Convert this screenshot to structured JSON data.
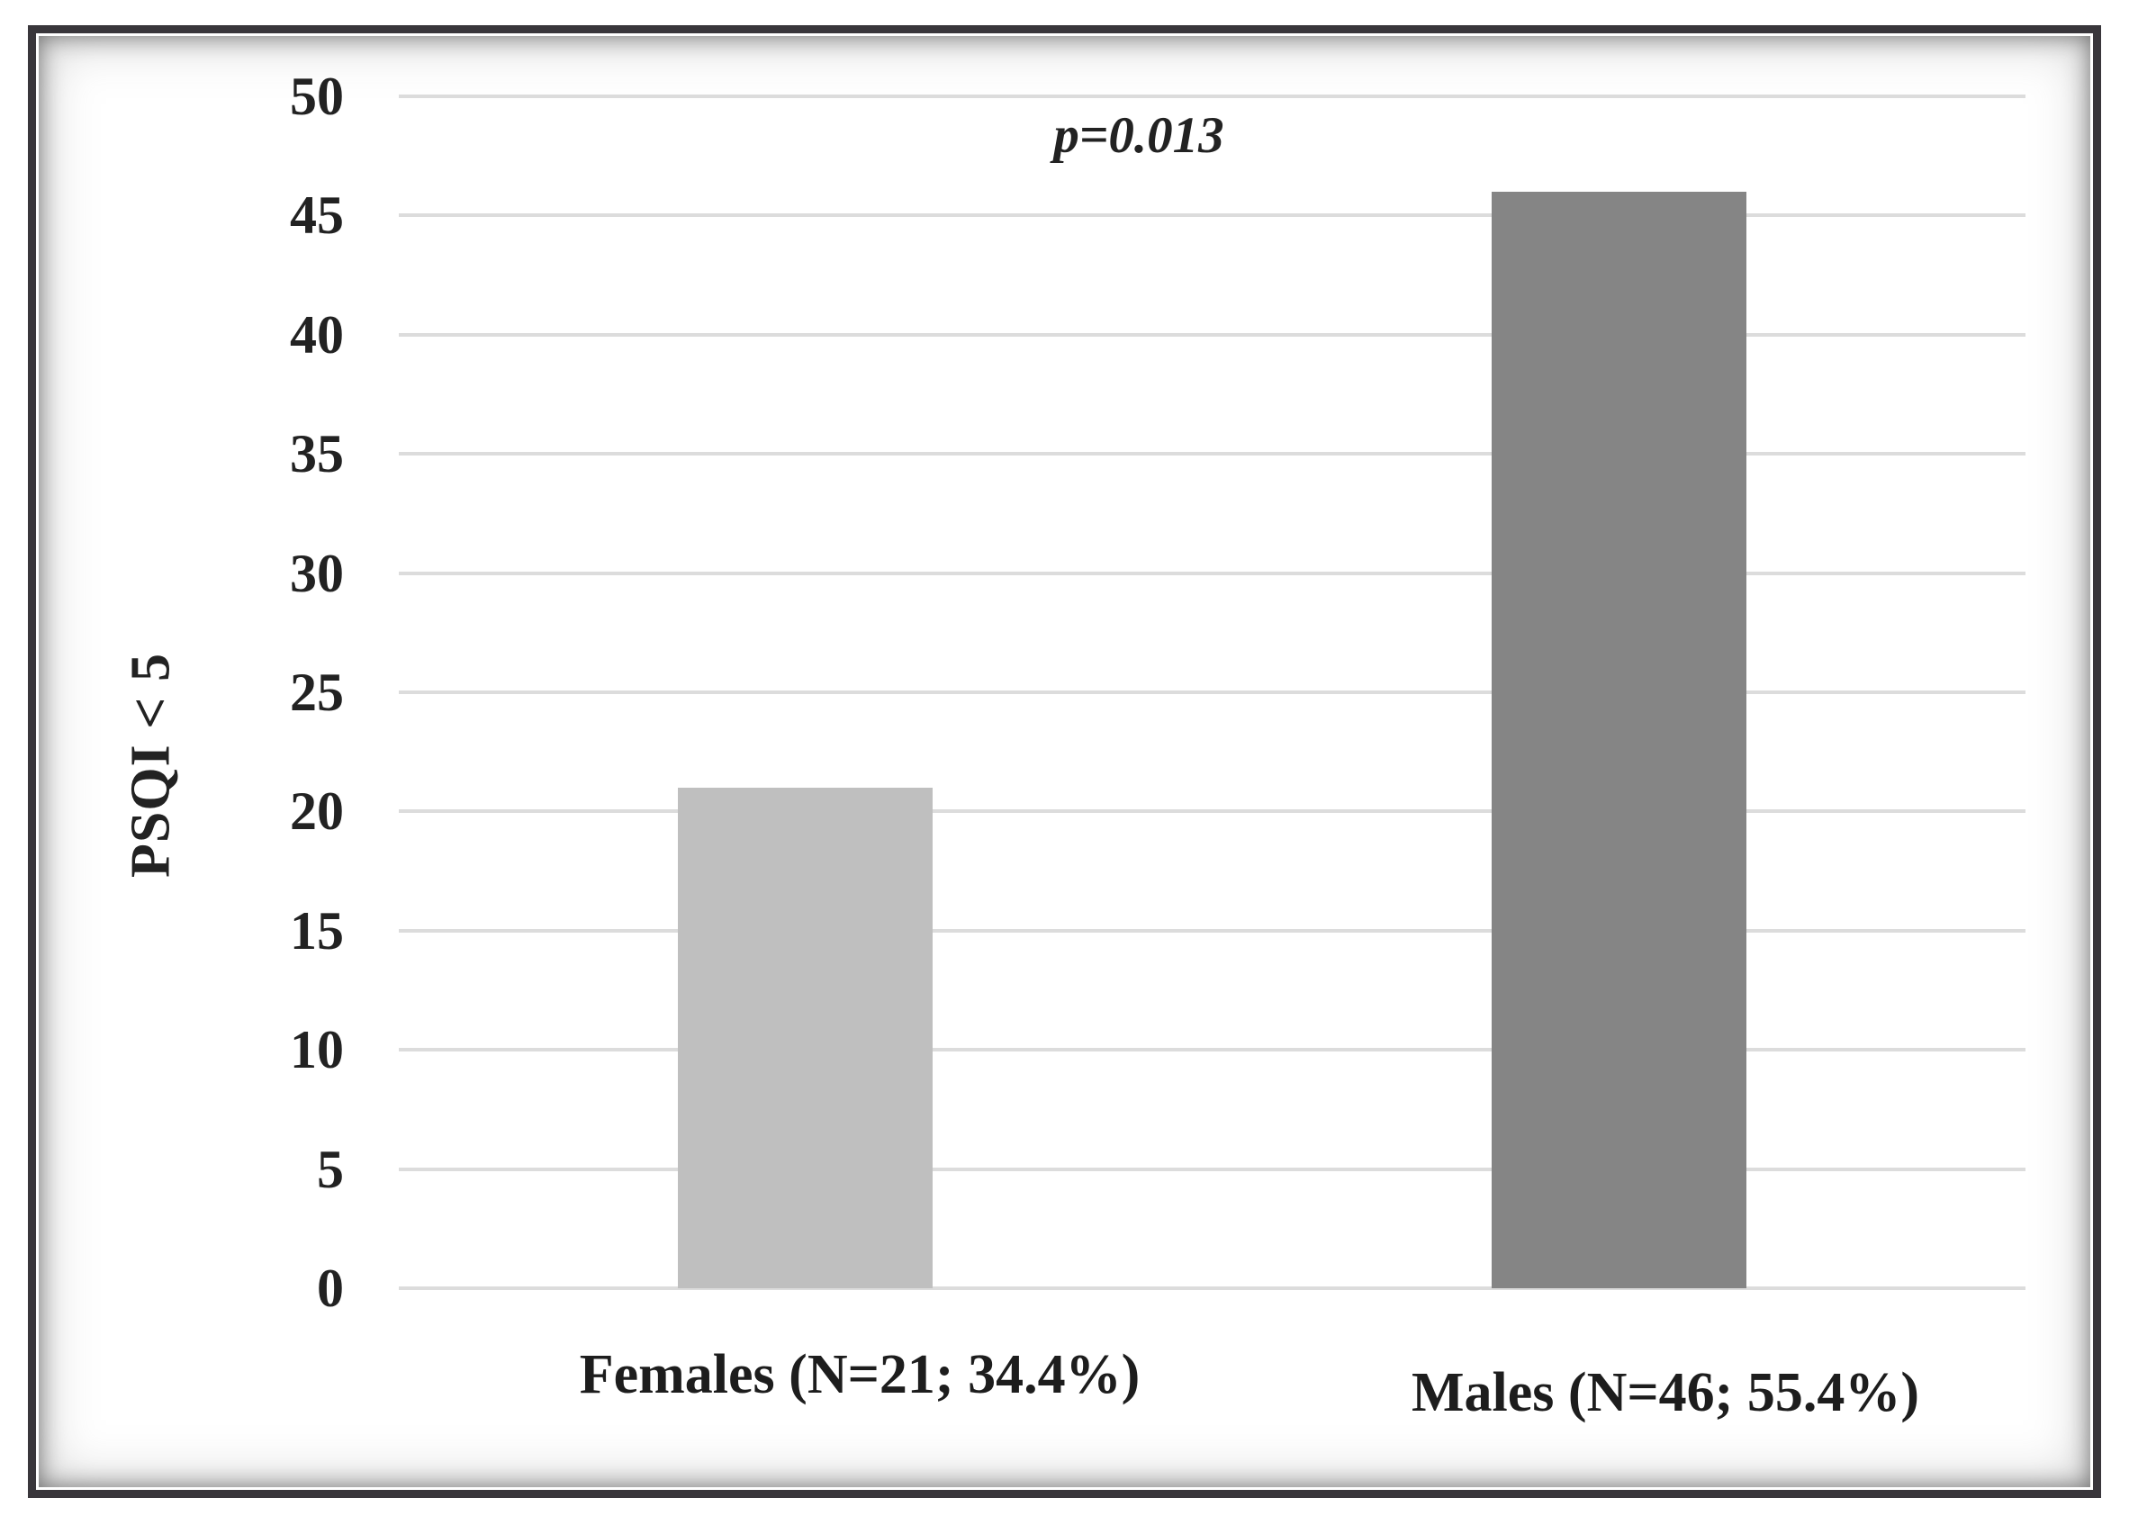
{
  "chart_data": {
    "type": "bar",
    "categories": [
      "Females (N=21; 34.4%)",
      "Males (N=46; 55.4%)"
    ],
    "values": [
      21,
      46
    ],
    "series_name": "PSQI < 5 count",
    "title": "",
    "xlabel": "",
    "ylabel": "PSQI < 5",
    "ylim": [
      0,
      50
    ],
    "yticks": [
      0,
      5,
      10,
      15,
      20,
      25,
      30,
      35,
      40,
      45,
      50
    ],
    "annotation": "p=0.013",
    "grid": true,
    "legend": "none",
    "bar_colors": [
      "#bfbfbf",
      "#858585"
    ],
    "gridline_color": "#dcdcdc",
    "text_color": "#222222",
    "frame_color": "#39363b",
    "background_color": "#ffffff"
  }
}
